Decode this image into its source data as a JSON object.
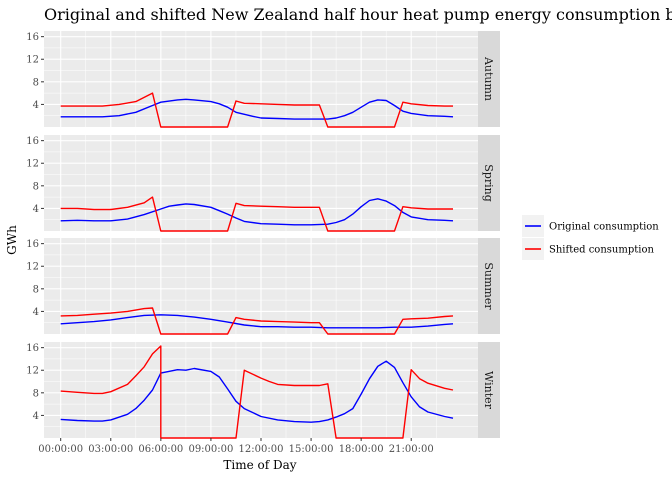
{
  "chart_data": {
    "type": "line",
    "title": "Original and shifted New Zealand half hour heat pump energy consumption by season",
    "xlabel": "Time of Day",
    "ylabel": "GWh",
    "ylim": [
      0,
      17
    ],
    "yticks": [
      4,
      8,
      12,
      16
    ],
    "xticks": [
      "00:00:00",
      "03:00:00",
      "06:00:00",
      "09:00:00",
      "12:00:00",
      "15:00:00",
      "18:00:00",
      "21:00:00"
    ],
    "x_range_hours": [
      -1,
      25
    ],
    "grid": true,
    "legend_position": "right",
    "colors": {
      "original": "#0000ff",
      "shifted": "#ff0000",
      "panel_background": "#ebebeb",
      "strip_background": "#d9d9d9",
      "grid": "#ffffff"
    },
    "series_names": [
      "Original consumption",
      "Shifted consumption"
    ],
    "panels": [
      {
        "facet": "Autumn",
        "original": [
          [
            0,
            1.8
          ],
          [
            1,
            1.8
          ],
          [
            1.5,
            1.8
          ],
          [
            2.5,
            1.8
          ],
          [
            3.5,
            2.0
          ],
          [
            4.5,
            2.6
          ],
          [
            5.5,
            3.8
          ],
          [
            6,
            4.4
          ],
          [
            7,
            4.8
          ],
          [
            7.5,
            4.9
          ],
          [
            8,
            4.8
          ],
          [
            9,
            4.5
          ],
          [
            9.5,
            4.1
          ],
          [
            10,
            3.5
          ],
          [
            10.5,
            2.6
          ],
          [
            11.5,
            1.9
          ],
          [
            12,
            1.6
          ],
          [
            13,
            1.5
          ],
          [
            14,
            1.4
          ],
          [
            15,
            1.4
          ],
          [
            16,
            1.4
          ],
          [
            16.5,
            1.6
          ],
          [
            17,
            2.0
          ],
          [
            17.5,
            2.6
          ],
          [
            18,
            3.5
          ],
          [
            18.5,
            4.4
          ],
          [
            19,
            4.8
          ],
          [
            19.5,
            4.7
          ],
          [
            20,
            3.8
          ],
          [
            20.5,
            2.8
          ],
          [
            21,
            2.4
          ],
          [
            22,
            2.0
          ],
          [
            23,
            1.9
          ],
          [
            23.5,
            1.8
          ]
        ],
        "shifted": [
          [
            0,
            3.7
          ],
          [
            1,
            3.7
          ],
          [
            1.5,
            3.7
          ],
          [
            2,
            3.7
          ],
          [
            2.5,
            3.7
          ],
          [
            3.5,
            4.0
          ],
          [
            4.5,
            4.5
          ],
          [
            5.5,
            6.0
          ],
          [
            6,
            0
          ],
          [
            10,
            0
          ],
          [
            10.5,
            4.6
          ],
          [
            11,
            4.2
          ],
          [
            12,
            4.1
          ],
          [
            13,
            4.0
          ],
          [
            14,
            3.9
          ],
          [
            14.5,
            3.9
          ],
          [
            15,
            3.9
          ],
          [
            15.5,
            3.9
          ],
          [
            16,
            0
          ],
          [
            20,
            0
          ],
          [
            20.5,
            4.4
          ],
          [
            21,
            4.1
          ],
          [
            22,
            3.8
          ],
          [
            23,
            3.7
          ],
          [
            23.5,
            3.7
          ]
        ]
      },
      {
        "facet": "Spring",
        "original": [
          [
            0,
            1.8
          ],
          [
            1,
            1.9
          ],
          [
            2,
            1.8
          ],
          [
            3,
            1.8
          ],
          [
            4,
            2.1
          ],
          [
            5,
            2.9
          ],
          [
            6,
            3.9
          ],
          [
            6.5,
            4.4
          ],
          [
            7,
            4.6
          ],
          [
            7.5,
            4.8
          ],
          [
            8,
            4.7
          ],
          [
            9,
            4.2
          ],
          [
            9.5,
            3.6
          ],
          [
            10,
            3.0
          ],
          [
            10.5,
            2.3
          ],
          [
            11,
            1.7
          ],
          [
            12,
            1.3
          ],
          [
            13,
            1.2
          ],
          [
            14,
            1.1
          ],
          [
            15,
            1.1
          ],
          [
            16,
            1.2
          ],
          [
            16.5,
            1.5
          ],
          [
            17,
            2.0
          ],
          [
            17.5,
            3.0
          ],
          [
            18,
            4.3
          ],
          [
            18.5,
            5.4
          ],
          [
            19,
            5.7
          ],
          [
            19.5,
            5.3
          ],
          [
            20,
            4.5
          ],
          [
            20.5,
            3.3
          ],
          [
            21,
            2.5
          ],
          [
            22,
            2.0
          ],
          [
            23,
            1.9
          ],
          [
            23.5,
            1.8
          ]
        ],
        "shifted": [
          [
            0,
            4.0
          ],
          [
            1,
            4.0
          ],
          [
            2,
            3.8
          ],
          [
            3,
            3.8
          ],
          [
            4,
            4.2
          ],
          [
            5,
            5.0
          ],
          [
            5.5,
            6.0
          ],
          [
            6,
            0
          ],
          [
            10,
            0
          ],
          [
            10.5,
            4.9
          ],
          [
            11,
            4.5
          ],
          [
            12,
            4.4
          ],
          [
            13,
            4.3
          ],
          [
            14,
            4.2
          ],
          [
            15,
            4.2
          ],
          [
            15.5,
            4.2
          ],
          [
            16,
            0
          ],
          [
            20,
            0
          ],
          [
            20.5,
            4.3
          ],
          [
            21,
            4.1
          ],
          [
            22,
            3.9
          ],
          [
            23,
            3.9
          ],
          [
            23.5,
            3.9
          ]
        ]
      },
      {
        "facet": "Summer",
        "original": [
          [
            0,
            1.8
          ],
          [
            1,
            2.0
          ],
          [
            2,
            2.2
          ],
          [
            3,
            2.5
          ],
          [
            4,
            2.9
          ],
          [
            5,
            3.3
          ],
          [
            6,
            3.4
          ],
          [
            7,
            3.3
          ],
          [
            8,
            3.0
          ],
          [
            9,
            2.6
          ],
          [
            10,
            2.1
          ],
          [
            11,
            1.6
          ],
          [
            12,
            1.3
          ],
          [
            13,
            1.3
          ],
          [
            14,
            1.2
          ],
          [
            15,
            1.2
          ],
          [
            16,
            1.1
          ],
          [
            17,
            1.1
          ],
          [
            18,
            1.1
          ],
          [
            19,
            1.1
          ],
          [
            20,
            1.2
          ],
          [
            21,
            1.2
          ],
          [
            22,
            1.4
          ],
          [
            23,
            1.7
          ],
          [
            23.5,
            1.8
          ]
        ],
        "shifted": [
          [
            0,
            3.2
          ],
          [
            1,
            3.3
          ],
          [
            2,
            3.5
          ],
          [
            3,
            3.7
          ],
          [
            4,
            4.0
          ],
          [
            5,
            4.5
          ],
          [
            5.5,
            4.6
          ],
          [
            6,
            0
          ],
          [
            10,
            0
          ],
          [
            10.5,
            2.9
          ],
          [
            11,
            2.6
          ],
          [
            12,
            2.3
          ],
          [
            13,
            2.2
          ],
          [
            14,
            2.1
          ],
          [
            15,
            2.0
          ],
          [
            15.5,
            2.0
          ],
          [
            16,
            0
          ],
          [
            20,
            0
          ],
          [
            20.5,
            2.6
          ],
          [
            21,
            2.7
          ],
          [
            22,
            2.8
          ],
          [
            23,
            3.1
          ],
          [
            23.5,
            3.2
          ]
        ]
      },
      {
        "facet": "Winter",
        "original": [
          [
            0,
            3.3
          ],
          [
            1,
            3.1
          ],
          [
            2,
            3.0
          ],
          [
            2.5,
            3.0
          ],
          [
            3,
            3.2
          ],
          [
            4,
            4.2
          ],
          [
            4.5,
            5.2
          ],
          [
            5,
            6.7
          ],
          [
            5.5,
            8.5
          ],
          [
            6,
            11.5
          ],
          [
            7,
            12.1
          ],
          [
            7.5,
            12.0
          ],
          [
            8,
            12.3
          ],
          [
            9,
            11.8
          ],
          [
            9.5,
            10.8
          ],
          [
            10,
            8.7
          ],
          [
            10.5,
            6.5
          ],
          [
            11,
            5.2
          ],
          [
            12,
            3.8
          ],
          [
            13,
            3.2
          ],
          [
            14,
            2.9
          ],
          [
            15,
            2.8
          ],
          [
            15.5,
            2.9
          ],
          [
            16,
            3.2
          ],
          [
            16.5,
            3.7
          ],
          [
            17,
            4.3
          ],
          [
            17.5,
            5.2
          ],
          [
            18,
            7.8
          ],
          [
            18.5,
            10.5
          ],
          [
            19,
            12.7
          ],
          [
            19.5,
            13.6
          ],
          [
            20,
            12.5
          ],
          [
            20.5,
            9.8
          ],
          [
            21,
            7.3
          ],
          [
            21.5,
            5.5
          ],
          [
            22,
            4.6
          ],
          [
            23,
            3.8
          ],
          [
            23.5,
            3.5
          ]
        ],
        "shifted": [
          [
            0,
            8.3
          ],
          [
            1,
            8.1
          ],
          [
            2,
            7.9
          ],
          [
            2.5,
            7.9
          ],
          [
            3,
            8.2
          ],
          [
            4,
            9.5
          ],
          [
            4.5,
            11.0
          ],
          [
            5,
            12.6
          ],
          [
            5.5,
            14.9
          ],
          [
            6,
            16.3
          ],
          [
            6,
            0
          ],
          [
            10.5,
            0
          ],
          [
            11,
            12.0
          ],
          [
            12,
            10.6
          ],
          [
            12.5,
            10.0
          ],
          [
            13,
            9.5
          ],
          [
            14,
            9.3
          ],
          [
            15,
            9.3
          ],
          [
            15.5,
            9.3
          ],
          [
            16,
            9.6
          ],
          [
            16.5,
            0
          ],
          [
            20.5,
            0
          ],
          [
            21,
            12.1
          ],
          [
            21.5,
            10.5
          ],
          [
            22,
            9.7
          ],
          [
            23,
            8.8
          ],
          [
            23.5,
            8.5
          ]
        ]
      }
    ]
  }
}
